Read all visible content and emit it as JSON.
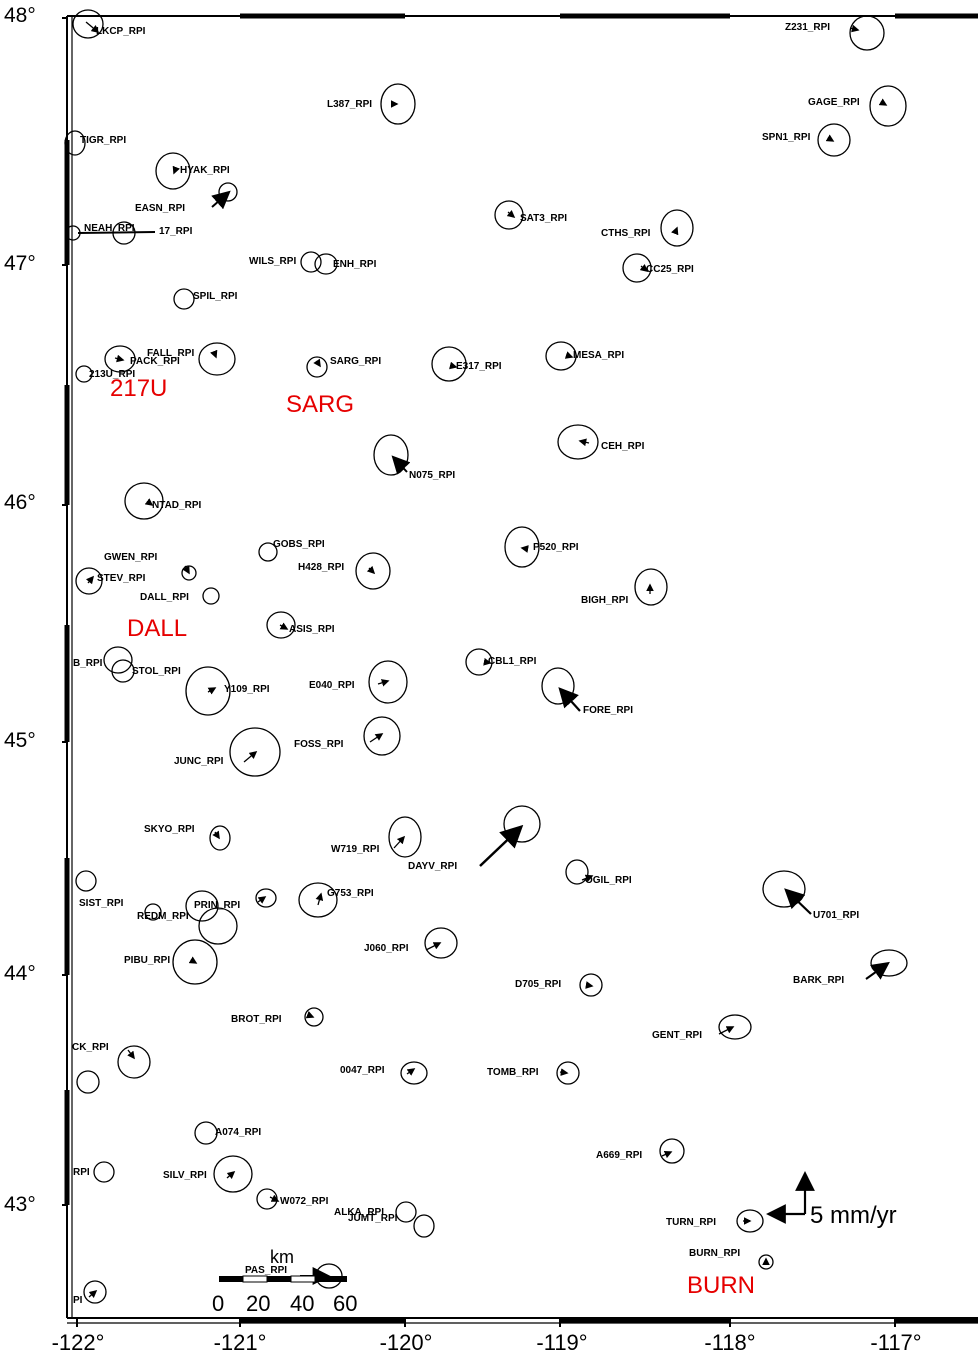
{
  "axes": {
    "lon_range": [
      -122,
      -117
    ],
    "lat_range": [
      43,
      48
    ],
    "y_ticks": [
      {
        "value": 48,
        "label": "48°"
      },
      {
        "value": 47,
        "label": "47°"
      },
      {
        "value": 46,
        "label": "46°"
      },
      {
        "value": 45,
        "label": "45°"
      },
      {
        "value": 44,
        "label": "44°"
      },
      {
        "value": 43,
        "label": "43°"
      }
    ],
    "x_ticks": [
      {
        "value": -122,
        "label": "-122°"
      },
      {
        "value": -121,
        "label": "-121°"
      },
      {
        "value": -120,
        "label": "-120°"
      },
      {
        "value": -119,
        "label": "-119°"
      },
      {
        "value": -118,
        "label": "-118°"
      },
      {
        "value": -117,
        "label": "-117°"
      }
    ]
  },
  "stations": [
    {
      "name": "LKCP_RPI"
    },
    {
      "name": "Z231_RPI"
    },
    {
      "name": "L387_RPI"
    },
    {
      "name": "GAGE_RPI"
    },
    {
      "name": "TIGR_RPI"
    },
    {
      "name": "SPN1_RPI"
    },
    {
      "name": "HYAK_RPI"
    },
    {
      "name": "EASN_RPI"
    },
    {
      "name": "SAT3_RPI"
    },
    {
      "name": "CTHS_RPI"
    },
    {
      "name": "NEAH_RPI"
    },
    {
      "name": "17_RPI"
    },
    {
      "name": "WILS_RPI"
    },
    {
      "name": "ENH_RPI"
    },
    {
      "name": "CC25_RPI"
    },
    {
      "name": "SPIL_RPI"
    },
    {
      "name": "FALL_RPI"
    },
    {
      "name": "PACK_RPI"
    },
    {
      "name": "213U_RPI"
    },
    {
      "name": "SARG_RPI"
    },
    {
      "name": "E317_RPI"
    },
    {
      "name": "MESA_RPI"
    },
    {
      "name": "CEH_RPI"
    },
    {
      "name": "N075_RPI"
    },
    {
      "name": "NTAD_RPI"
    },
    {
      "name": "GOBS_RPI"
    },
    {
      "name": "P520_RPI"
    },
    {
      "name": "GWEN_RPI"
    },
    {
      "name": "H428_RPI"
    },
    {
      "name": "STEV_RPI"
    },
    {
      "name": "BIGH_RPI"
    },
    {
      "name": "DALL_RPI"
    },
    {
      "name": "ASIS_RPI"
    },
    {
      "name": "B_RPI"
    },
    {
      "name": "STOL_RPI"
    },
    {
      "name": "CBL1_RPI"
    },
    {
      "name": "Y109_RPI"
    },
    {
      "name": "E040_RPI"
    },
    {
      "name": "FORE_RPI"
    },
    {
      "name": "FOSS_RPI"
    },
    {
      "name": "JUNC_RPI"
    },
    {
      "name": "SKYO_RPI"
    },
    {
      "name": "W719_RPI"
    },
    {
      "name": "DAYV_RPI"
    },
    {
      "name": "OGIL_RPI"
    },
    {
      "name": "SIST_RPI"
    },
    {
      "name": "PRIN_RPI"
    },
    {
      "name": "REDM_RPI"
    },
    {
      "name": "G753_RPI"
    },
    {
      "name": "U701_RPI"
    },
    {
      "name": "PIBU_RPI"
    },
    {
      "name": "J060_RPI"
    },
    {
      "name": "BARK_RPI"
    },
    {
      "name": "D705_RPI"
    },
    {
      "name": "BROT_RPI"
    },
    {
      "name": "CK_RPI"
    },
    {
      "name": "GENT_RPI"
    },
    {
      "name": "0047_RPI"
    },
    {
      "name": "TOMB_RPI"
    },
    {
      "name": "A074_RPI"
    },
    {
      "name": "A669_RPI"
    },
    {
      "name": "RPI"
    },
    {
      "name": "SILV_RPI"
    },
    {
      "name": "W072_RPI"
    },
    {
      "name": "ALKA_RPI"
    },
    {
      "name": "JUMT_RPI"
    },
    {
      "name": "TURN_RPI"
    },
    {
      "name": "BURN_RPI"
    },
    {
      "name": "PAS_RPI"
    },
    {
      "name": "PI"
    }
  ],
  "annotations": [
    "217U",
    "SARG",
    "DALL",
    "BURN"
  ],
  "velocity_scale_label": "5 mm/yr",
  "distance_scale": {
    "unit_label": "km",
    "tick_labels": [
      "0",
      "20",
      "40",
      "60"
    ]
  }
}
